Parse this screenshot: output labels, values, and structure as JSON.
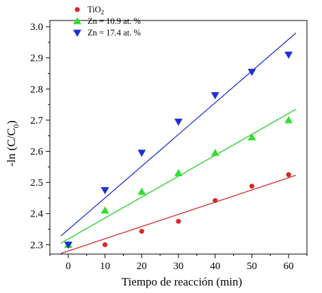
{
  "chart_data": {
    "type": "scatter",
    "xlabel": "Tiempo de reacción (min)",
    "ylabel": "-ln (C/C",
    "ylabel_sub": "0",
    "ylabel_tail": ")",
    "xlim": [
      -5,
      65
    ],
    "ylim": [
      2.27,
      3.02
    ],
    "x_ticks": [
      0,
      10,
      20,
      30,
      40,
      50,
      60
    ],
    "y_ticks": [
      2.3,
      2.4,
      2.5,
      2.6,
      2.7,
      2.8,
      2.9,
      3.0
    ],
    "x_tick_labels": [
      "0",
      "10",
      "20",
      "30",
      "40",
      "50",
      "60"
    ],
    "y_tick_labels": [
      "2.3",
      "2.4",
      "2.5",
      "2.6",
      "2.7",
      "2.8",
      "2.9",
      "3.0"
    ],
    "legend_position": "top-left",
    "series": [
      {
        "name": "TiO",
        "name_sub": "2",
        "marker": "circle",
        "color": "#d62728",
        "x": [
          0,
          10,
          20,
          30,
          40,
          50,
          60
        ],
        "y": [
          2.3,
          2.3,
          2.343,
          2.375,
          2.442,
          2.488,
          2.525
        ],
        "fit": {
          "x": [
            -2,
            62
          ],
          "y": [
            2.272,
            2.523
          ]
        }
      },
      {
        "name": "Zn = 10.9 at. %",
        "marker": "triangle-up",
        "color": "#2ee02e",
        "x": [
          0,
          10,
          20,
          30,
          40,
          50,
          60
        ],
        "y": [
          2.3,
          2.41,
          2.47,
          2.53,
          2.595,
          2.645,
          2.7
        ],
        "fit": {
          "x": [
            -2,
            62
          ],
          "y": [
            2.305,
            2.735
          ]
        }
      },
      {
        "name": "Zn = 17.4 at. %",
        "marker": "triangle-down",
        "color": "#1f2fd6",
        "x": [
          0,
          10,
          20,
          30,
          40,
          50,
          60
        ],
        "y": [
          2.3,
          2.475,
          2.595,
          2.695,
          2.78,
          2.855,
          2.91
        ],
        "fit": {
          "x": [
            -2,
            62
          ],
          "y": [
            2.328,
            2.98
          ]
        }
      }
    ]
  }
}
